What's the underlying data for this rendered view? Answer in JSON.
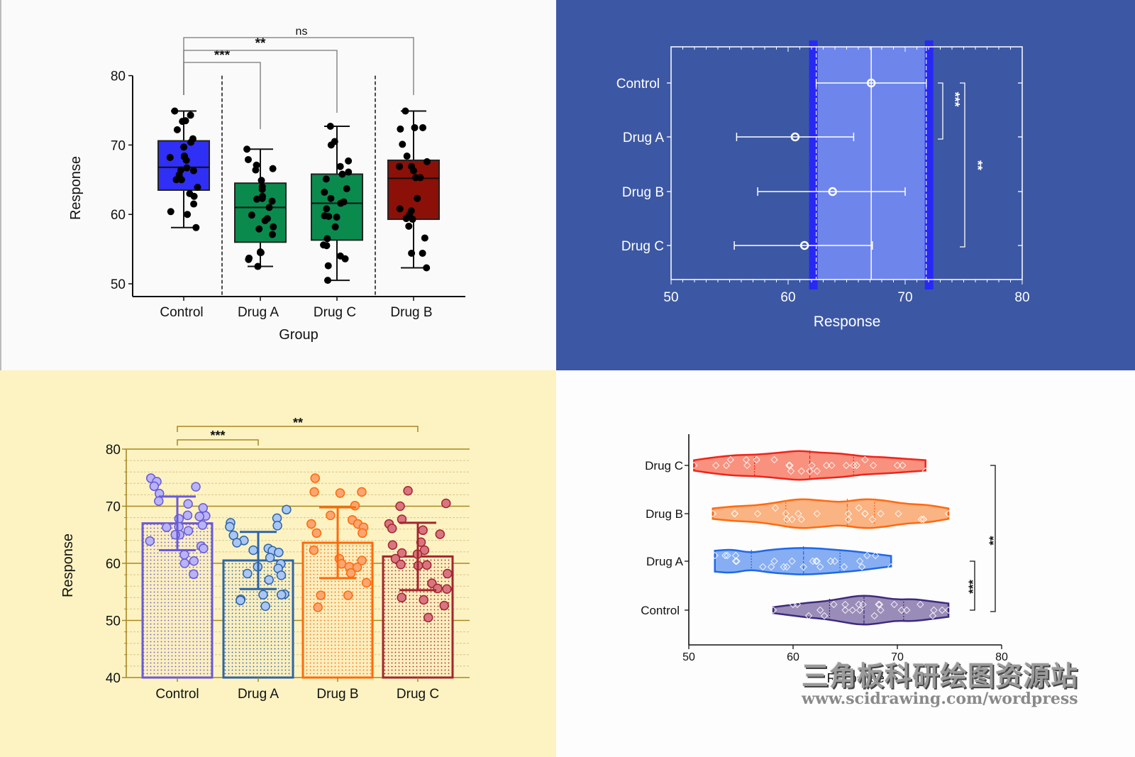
{
  "chart_data": [
    {
      "type": "box",
      "panel": "top-left",
      "xlabel": "Group",
      "ylabel": "Response",
      "ylim": [
        48,
        80
      ],
      "yticks": [
        50,
        60,
        70,
        80
      ],
      "categories": [
        "Control",
        "Drug A",
        "Drug C",
        "Drug B"
      ],
      "colors": [
        "#2f2ff5",
        "#0b8a4e",
        "#0b8a4e",
        "#8b1008"
      ],
      "boxes": [
        {
          "name": "Control",
          "min": 58.1,
          "q1": 63.5,
          "median": 66.8,
          "q3": 70.6,
          "max": 74.9,
          "points": [
            74.9,
            74.3,
            73.5,
            73.4,
            72.2,
            70.9,
            70.4,
            69.7,
            68.4,
            68.3,
            68.2,
            67.8,
            66.7,
            66.4,
            66.3,
            65.7,
            65.0,
            65.0,
            63.9,
            63.0,
            62.6,
            61.5,
            60.4,
            60.0,
            58.1
          ]
        },
        {
          "name": "Drug A",
          "min": 52.5,
          "q1": 56.0,
          "median": 61.0,
          "q3": 64.5,
          "max": 69.4,
          "points": [
            69.4,
            67.9,
            67.1,
            66.4,
            66.6,
            64.9,
            64.0,
            63.6,
            62.6,
            62.3,
            62.2,
            61.9,
            61.0,
            59.9,
            59.4,
            59.1,
            58.2,
            57.9,
            57.1,
            54.6,
            54.5,
            54.5,
            53.7,
            53.5,
            52.5
          ]
        },
        {
          "name": "Drug C",
          "min": 50.5,
          "q1": 56.3,
          "median": 61.6,
          "q3": 65.8,
          "max": 72.7,
          "points": [
            72.7,
            70.5,
            70.0,
            67.7,
            66.9,
            66.1,
            65.8,
            65.1,
            63.7,
            63.2,
            62.3,
            61.8,
            61.6,
            60.8,
            59.8,
            59.7,
            59.6,
            58.2,
            56.5,
            55.6,
            55.5,
            54.0,
            53.6,
            52.6,
            50.5
          ]
        },
        {
          "name": "Drug B",
          "min": 52.3,
          "q1": 59.3,
          "median": 65.2,
          "q3": 67.8,
          "max": 74.9,
          "points": [
            74.9,
            72.5,
            72.5,
            72.3,
            70.1,
            68.4,
            67.6,
            66.9,
            66.9,
            66.3,
            65.3,
            65.3,
            62.3,
            60.8,
            60.5,
            59.9,
            59.4,
            59.3,
            58.3,
            56.6,
            54.4,
            54.4,
            52.3
          ]
        }
      ],
      "annotations": [
        {
          "from": "Control",
          "to": "Drug A",
          "label": "***"
        },
        {
          "from": "Control",
          "to": "Drug C",
          "label": "**"
        },
        {
          "from": "Control",
          "to": "Drug B",
          "label": "ns"
        }
      ],
      "grid": false
    },
    {
      "type": "forest",
      "panel": "top-right",
      "xlabel": "Response",
      "xlim": [
        50,
        80
      ],
      "xticks": [
        50,
        60,
        70,
        80
      ],
      "categories": [
        "Control",
        "Drug A",
        "Drug B",
        "Drug C"
      ],
      "means": [
        67.1,
        60.6,
        63.8,
        61.4
      ],
      "ci_low": [
        62.4,
        55.6,
        57.4,
        55.4
      ],
      "ci_high": [
        71.8,
        65.6,
        70.0,
        67.2
      ],
      "reference_band": {
        "low": 62.4,
        "high": 71.8,
        "center": 67.1
      },
      "annotations": [
        {
          "from": "Control",
          "to": "Drug A",
          "label": "***"
        },
        {
          "from": "Control",
          "to": "Drug C",
          "label": "**"
        }
      ],
      "grid": false
    },
    {
      "type": "bar",
      "panel": "bottom-left",
      "ylabel": "Response",
      "ylim": [
        40,
        80
      ],
      "yticks": [
        40,
        50,
        60,
        70,
        80
      ],
      "categories": [
        "Control",
        "Drug A",
        "Drug B",
        "Drug C"
      ],
      "values": [
        67.0,
        60.5,
        63.6,
        61.2
      ],
      "sd": [
        4.7,
        5.0,
        6.2,
        5.9
      ],
      "colors": [
        "#6a5ad8",
        "#2e65a6",
        "#ff6a0a",
        "#a3262e"
      ],
      "point_fill": [
        "#b8b4f5",
        "#a9c6f5",
        "#f8a672",
        "#d97581"
      ],
      "points": [
        [
          74.9,
          74.3,
          73.5,
          73.4,
          72.2,
          70.9,
          70.4,
          69.7,
          68.4,
          68.3,
          68.2,
          67.8,
          66.7,
          66.4,
          66.3,
          65.7,
          65.0,
          65.0,
          63.9,
          63.0,
          62.6,
          61.5,
          60.4,
          60.0,
          58.1
        ],
        [
          69.4,
          67.9,
          67.1,
          66.4,
          66.6,
          64.9,
          64.0,
          63.6,
          62.6,
          62.3,
          62.2,
          61.9,
          61.0,
          59.9,
          59.4,
          59.1,
          58.2,
          57.9,
          57.1,
          54.6,
          54.5,
          54.5,
          53.7,
          53.5,
          52.5
        ],
        [
          74.9,
          72.5,
          72.5,
          72.3,
          70.1,
          68.4,
          67.6,
          66.9,
          66.9,
          66.3,
          65.3,
          65.3,
          62.3,
          60.8,
          60.5,
          59.9,
          59.4,
          59.3,
          58.3,
          56.6,
          54.4,
          54.4,
          52.3
        ],
        [
          72.7,
          70.5,
          70.0,
          67.7,
          66.9,
          66.1,
          65.8,
          65.1,
          63.7,
          63.2,
          62.3,
          61.8,
          61.6,
          60.8,
          59.8,
          59.7,
          59.6,
          58.2,
          56.5,
          55.6,
          55.5,
          54.0,
          53.6,
          52.6,
          50.5
        ]
      ],
      "annotations": [
        {
          "from": "Control",
          "to": "Drug A",
          "label": "***"
        },
        {
          "from": "Control",
          "to": "Drug C",
          "label": "**"
        }
      ],
      "grid": true
    },
    {
      "type": "violin",
      "panel": "bottom-right",
      "xlabel": "Response",
      "xlim": [
        50,
        80
      ],
      "xticks": [
        50,
        60,
        70,
        80
      ],
      "categories": [
        "Drug C",
        "Drug B",
        "Drug A",
        "Control"
      ],
      "colors": [
        "#f0241a",
        "#ff6a10",
        "#1f68e8",
        "#3e2a7e"
      ],
      "fills": [
        "#f8917e",
        "#fab382",
        "#87aef3",
        "#9a8cb8"
      ],
      "ranges": [
        [
          50.5,
          72.7
        ],
        [
          52.3,
          74.9
        ],
        [
          52.5,
          69.4
        ],
        [
          58.1,
          74.9
        ]
      ],
      "quartiles": [
        [
          56.3,
          61.6,
          65.8
        ],
        [
          59.3,
          65.2,
          67.8
        ],
        [
          56.0,
          61.0,
          64.5
        ],
        [
          63.5,
          66.8,
          70.6
        ]
      ],
      "annotations": [
        {
          "from": "Control",
          "to": "Drug A",
          "label": "***"
        },
        {
          "from": "Control",
          "to": "Drug C",
          "label": "**"
        }
      ],
      "grid": false
    }
  ],
  "watermark": {
    "title": "三角板科研绘图资源站",
    "url": "www.scidrawing.com/wordpress"
  }
}
